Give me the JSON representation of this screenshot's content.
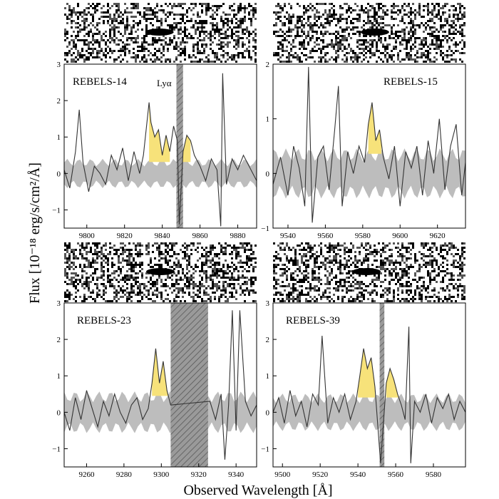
{
  "figure": {
    "ylabel": "Flux [10⁻¹⁸ erg/s/cm²/Å]",
    "xlabel": "Observed Wavelength [Å]"
  },
  "colors": {
    "noise_band": "#bdbdbd",
    "emission_fill": "#f7e27a",
    "spectrum_line": "#333333",
    "sky_mask": "#8c8c8c"
  },
  "chart_data": [
    {
      "type": "line",
      "panel_label": "REBELS-14",
      "annotation": "Lyα",
      "annotation_x": 9841,
      "xlim": [
        9788,
        9890
      ],
      "ylim": [
        -1.5,
        3
      ],
      "xticks": [
        9800,
        9820,
        9840,
        9860,
        9880
      ],
      "yticks": [
        -1,
        0,
        1,
        2,
        3
      ],
      "noise_level": 0.35,
      "masked_regions": [
        [
          9847.5,
          9851
        ]
      ],
      "emission_regions": [
        [
          9833,
          9844
        ],
        [
          9848.5,
          9855
        ]
      ],
      "spectrum": {
        "x": [
          9788,
          9791,
          9794,
          9796,
          9798,
          9801,
          9804,
          9807,
          9810,
          9813,
          9816,
          9819,
          9822,
          9825,
          9828,
          9830,
          9833,
          9834,
          9836,
          9838,
          9840,
          9842,
          9844,
          9846,
          9848,
          9849,
          9851,
          9853,
          9855,
          9857,
          9860,
          9863,
          9866,
          9869,
          9871,
          9872,
          9874,
          9877,
          9880,
          9883,
          9886,
          9890
        ],
        "y": [
          0.1,
          -0.4,
          0.6,
          1.75,
          0.3,
          -0.5,
          0.2,
          0.0,
          -0.3,
          0.5,
          0.1,
          0.7,
          -0.2,
          0.6,
          0.0,
          0.5,
          1.95,
          1.4,
          1.0,
          1.2,
          0.5,
          1.05,
          0.6,
          1.3,
          0.9,
          -1.4,
          0.6,
          1.05,
          0.9,
          0.5,
          0.2,
          -0.2,
          0.4,
          0.1,
          -1.45,
          2.75,
          -0.3,
          0.4,
          0.1,
          0.5,
          0.2,
          -0.2
        ]
      }
    },
    {
      "type": "line",
      "panel_label": "REBELS-15",
      "xlim": [
        9532,
        9635
      ],
      "ylim": [
        -1,
        2
      ],
      "xticks": [
        9540,
        9560,
        9580,
        9600,
        9620
      ],
      "yticks": [
        -1,
        0,
        1,
        2
      ],
      "noise_level": 0.4,
      "masked_regions": [],
      "emission_regions": [
        [
          9583,
          9590
        ]
      ],
      "spectrum": {
        "x": [
          9532,
          9536,
          9540,
          9543,
          9546,
          9549,
          9551,
          9553,
          9556,
          9559,
          9562,
          9565,
          9567,
          9569,
          9572,
          9575,
          9578,
          9581,
          9583,
          9585,
          9587,
          9589,
          9591,
          9594,
          9597,
          9600,
          9603,
          9606,
          9609,
          9612,
          9615,
          9618,
          9621,
          9624,
          9627,
          9630,
          9633,
          9635
        ],
        "y": [
          -0.2,
          0.3,
          -0.4,
          0.5,
          0.1,
          -0.6,
          1.95,
          -0.9,
          0.3,
          0.5,
          -0.3,
          0.8,
          1.6,
          -0.6,
          0.4,
          0.0,
          0.5,
          0.2,
          0.9,
          1.3,
          0.6,
          0.8,
          0.3,
          -0.1,
          0.5,
          -0.6,
          0.4,
          0.1,
          0.5,
          -0.4,
          0.6,
          0.0,
          1.0,
          -0.3,
          0.5,
          0.9,
          -0.4,
          0.2
        ]
      }
    },
    {
      "type": "line",
      "panel_label": "REBELS-23",
      "xlim": [
        9248,
        9351
      ],
      "ylim": [
        -1.5,
        3
      ],
      "xticks": [
        9260,
        9280,
        9300,
        9320,
        9340
      ],
      "yticks": [
        -1,
        0,
        1,
        2,
        3
      ],
      "noise_level": 0.5,
      "masked_regions": [
        [
          9305,
          9325
        ]
      ],
      "emission_regions": [
        [
          9295,
          9304
        ]
      ],
      "spectrum": {
        "x": [
          9248,
          9251,
          9254,
          9257,
          9260,
          9263,
          9266,
          9269,
          9272,
          9275,
          9278,
          9281,
          9284,
          9287,
          9290,
          9293,
          9295,
          9297,
          9299,
          9301,
          9303,
          9305,
          9326,
          9329,
          9332,
          9334,
          9336,
          9338,
          9340,
          9342,
          9345,
          9348,
          9351
        ],
        "y": [
          0.0,
          -0.5,
          0.4,
          -0.2,
          0.6,
          0.1,
          -0.4,
          0.3,
          -0.1,
          0.5,
          0.0,
          -0.3,
          0.2,
          0.4,
          -0.2,
          0.1,
          0.8,
          1.75,
          0.8,
          1.4,
          0.6,
          0.2,
          0.3,
          -0.2,
          0.5,
          -1.3,
          0.2,
          2.8,
          -0.5,
          2.8,
          0.3,
          -0.1,
          0.2
        ]
      }
    },
    {
      "type": "line",
      "panel_label": "REBELS-39",
      "xlim": [
        9495,
        9597
      ],
      "ylim": [
        -1.5,
        3
      ],
      "xticks": [
        9500,
        9520,
        9540,
        9560,
        9580
      ],
      "yticks": [
        -1,
        0,
        1,
        2,
        3
      ],
      "noise_level": 0.45,
      "masked_regions": [
        [
          9551.5,
          9554
        ]
      ],
      "emission_regions": [
        [
          9540,
          9549
        ],
        [
          9555,
          9562
        ]
      ],
      "spectrum": {
        "x": [
          9495,
          9498,
          9501,
          9504,
          9507,
          9510,
          9513,
          9516,
          9519,
          9521,
          9524,
          9527,
          9530,
          9533,
          9536,
          9539,
          9541,
          9543,
          9545,
          9547,
          9549,
          9552,
          9555,
          9557,
          9559,
          9561,
          9563,
          9565,
          9567,
          9568,
          9570,
          9573,
          9576,
          9579,
          9582,
          9585,
          9588,
          9591,
          9594,
          9597
        ],
        "y": [
          0.0,
          0.4,
          -0.3,
          0.6,
          -0.1,
          0.3,
          -0.4,
          0.5,
          0.2,
          2.1,
          -0.3,
          0.4,
          0.0,
          0.5,
          -0.2,
          0.3,
          1.0,
          1.75,
          1.2,
          1.5,
          0.7,
          -1.4,
          0.8,
          1.2,
          0.9,
          0.5,
          0.2,
          -0.2,
          2.35,
          -1.4,
          0.3,
          0.0,
          0.5,
          -0.3,
          0.4,
          0.1,
          0.5,
          -0.2,
          0.3,
          0.0
        ]
      }
    }
  ]
}
